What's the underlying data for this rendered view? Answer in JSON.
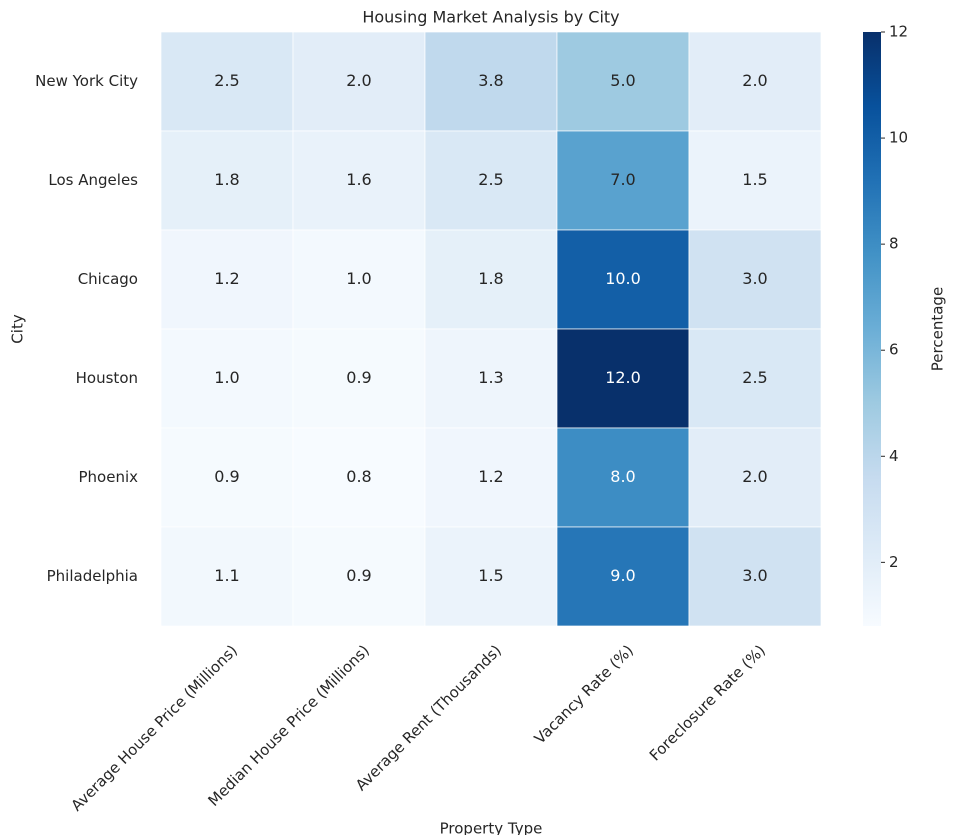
{
  "chart_data": {
    "type": "heatmap",
    "title": "Housing Market Analysis by City",
    "x_label": "Property Type",
    "y_label": "City",
    "categories": [
      "Average House Price (Millions)",
      "Median House Price (Millions)",
      "Average Rent (Thousands)",
      "Vacancy Rate (%)",
      "Foreclosure Rate (%)"
    ],
    "rows": [
      "New York City",
      "Los Angeles",
      "Chicago",
      "Houston",
      "Phoenix",
      "Philadelphia"
    ],
    "values": [
      [
        2.5,
        2.0,
        3.8,
        5.0,
        2.0
      ],
      [
        1.8,
        1.6,
        2.5,
        7.0,
        1.5
      ],
      [
        1.2,
        1.0,
        1.8,
        10.0,
        3.0
      ],
      [
        1.0,
        0.9,
        1.3,
        12.0,
        2.5
      ],
      [
        0.9,
        0.8,
        1.2,
        8.0,
        2.0
      ],
      [
        1.1,
        0.9,
        1.5,
        9.0,
        3.0
      ]
    ],
    "value_labels": [
      [
        "2.5",
        "2.0",
        "3.8",
        "5.0",
        "2.0"
      ],
      [
        "1.8",
        "1.6",
        "2.5",
        "7.0",
        "1.5"
      ],
      [
        "1.2",
        "1.0",
        "1.8",
        "10.0",
        "3.0"
      ],
      [
        "1.0",
        "0.9",
        "1.3",
        "12.0",
        "2.5"
      ],
      [
        "0.9",
        "0.8",
        "1.2",
        "8.0",
        "2.0"
      ],
      [
        "1.1",
        "0.9",
        "1.5",
        "9.0",
        "3.0"
      ]
    ],
    "colormap": [
      "#f7fbff",
      "#deebf7",
      "#c6dbef",
      "#9ecae1",
      "#6baed6",
      "#4292c6",
      "#2171b5",
      "#08519c",
      "#08306b"
    ],
    "colorbar": {
      "label": "Percentage",
      "lim": [
        0.8,
        12
      ],
      "ticks": [
        2,
        4,
        6,
        8,
        10,
        12
      ]
    }
  }
}
